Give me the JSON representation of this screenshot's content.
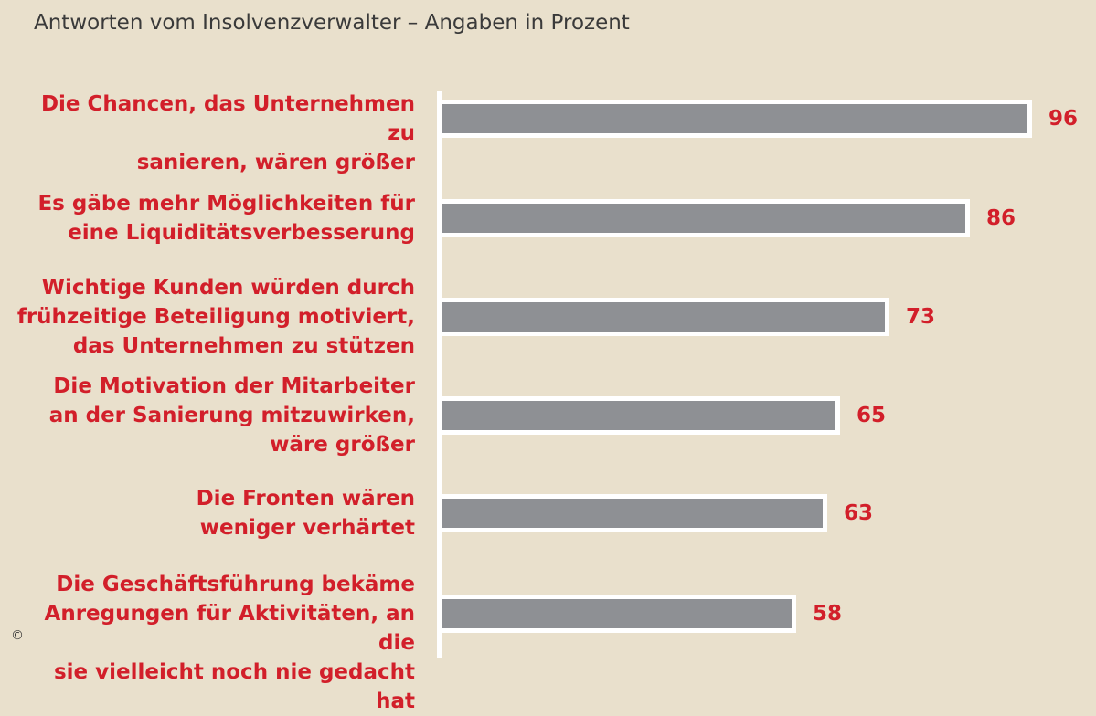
{
  "subtitle": "Antworten vom Insolvenzverwalter – Angaben in Prozent",
  "copyright": "©",
  "colors": {
    "label": "#d21f2a",
    "bar": "#8e9094",
    "bar_border": "#ffffff",
    "background": "#e9e0cc"
  },
  "chart_data": {
    "type": "bar",
    "orientation": "horizontal",
    "title": "",
    "subtitle": "Antworten vom Insolvenzverwalter – Angaben in Prozent",
    "xlabel": "",
    "ylabel": "",
    "xlim": [
      0,
      100
    ],
    "grid": false,
    "categories": [
      "Die Chancen, das Unternehmen zu\nsanieren, wären größer",
      "Es gäbe mehr Möglichkeiten für\neine Liquiditätsverbesserung",
      "Wichtige Kunden würden durch\nfrühzeitige Beteiligung motiviert,\ndas Unternehmen zu stützen",
      "Die Motivation der Mitarbeiter\nan der Sanierung mitzuwirken,\nwäre größer",
      "Die Fronten wären\nweniger verhärtet",
      "Die Geschäftsführung bekäme\nAnregungen für Aktivitäten, an die\nsie vielleicht noch nie gedacht hat"
    ],
    "values": [
      96,
      86,
      73,
      65,
      63,
      58
    ]
  }
}
